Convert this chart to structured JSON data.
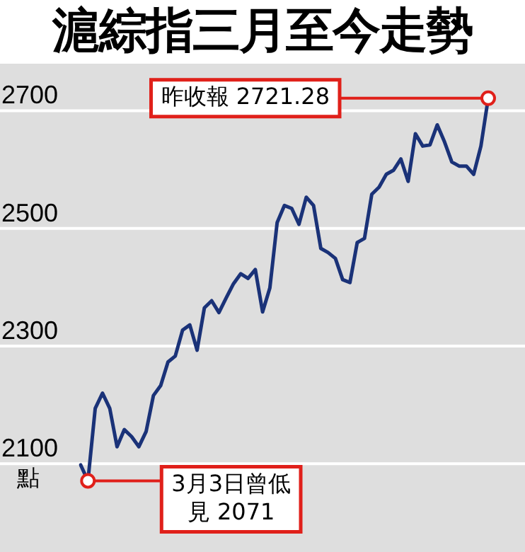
{
  "chart_data": {
    "type": "line",
    "title": "滬綜指三月至今走勢",
    "ylabel": "點",
    "categories": [
      null,
      null,
      null,
      null,
      null,
      null,
      null,
      null,
      null,
      null,
      null,
      null,
      null,
      null,
      null,
      null,
      null,
      null,
      null,
      null,
      null,
      null,
      null,
      null,
      null,
      null,
      null,
      null,
      null,
      null,
      null,
      null,
      null,
      null,
      null,
      null,
      null,
      null,
      null,
      null,
      null,
      null,
      null,
      null,
      null,
      null,
      null,
      null,
      null,
      null,
      null,
      null,
      null,
      null,
      null,
      null,
      null
    ],
    "series": [
      {
        "color": "#1a3278",
        "values": [
          2098,
          2071,
          2194,
          2220,
          2194,
          2129,
          2158,
          2146,
          2129,
          2155,
          2216,
          2233,
          2273,
          2283,
          2327,
          2336,
          2293,
          2365,
          2377,
          2357,
          2382,
          2406,
          2423,
          2415,
          2430,
          2358,
          2399,
          2510,
          2539,
          2534,
          2507,
          2553,
          2539,
          2466,
          2459,
          2449,
          2413,
          2408,
          2476,
          2483,
          2558,
          2570,
          2592,
          2599,
          2618,
          2580,
          2661,
          2640,
          2642,
          2676,
          2647,
          2613,
          2606,
          2606,
          2592,
          2640,
          2721.28
        ]
      }
    ],
    "ylim": [
      1950,
      2780
    ],
    "yticks": [
      2100,
      2300,
      2500,
      2700
    ],
    "grid": "y",
    "legend": false,
    "tick_labels": "y",
    "marker": "none",
    "line_style": "solid",
    "annotations": [
      "昨收報 2721.28",
      "3月3日曾低見 2071"
    ]
  }
}
